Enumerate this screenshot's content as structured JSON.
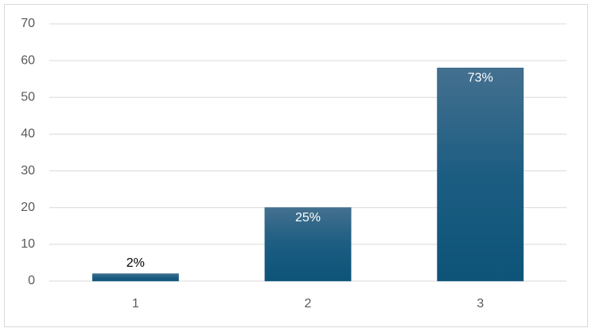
{
  "chart_data": {
    "type": "bar",
    "categories": [
      "1",
      "2",
      "3"
    ],
    "values": [
      2,
      20,
      58
    ],
    "bar_labels": [
      "2%",
      "25%",
      "73%"
    ],
    "color": "#1a5b80",
    "ylim": [
      0,
      70
    ],
    "yticks": [
      0,
      10,
      20,
      30,
      40,
      50,
      60,
      70
    ],
    "grid": true
  }
}
